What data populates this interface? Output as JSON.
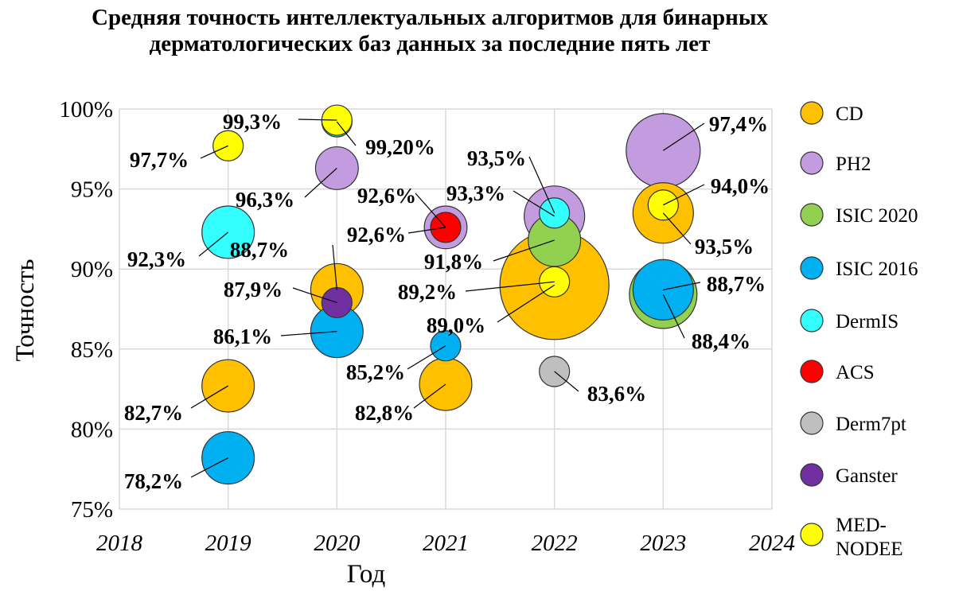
{
  "chart_data": {
    "type": "scatter",
    "subtype": "bubble",
    "title": "Средняя точность интеллектуальных алгоритмов для бинарных дерматологических баз данных за последние пять лет",
    "xlabel": "Год",
    "ylabel": "Точность",
    "xlim": [
      2018,
      2024
    ],
    "ylim": [
      75,
      100
    ],
    "xticks": [
      "2018",
      "2019",
      "2020",
      "2021",
      "2022",
      "2023",
      "2024"
    ],
    "yticks": [
      "75%",
      "80%",
      "85%",
      "90%",
      "95%",
      "100%"
    ],
    "grid": true,
    "legend_position": "right",
    "series": [
      {
        "name": "CD",
        "color": "#FFC000",
        "points": [
          {
            "x": 2019,
            "y": 82.7,
            "size": 3,
            "label": "82,7%"
          },
          {
            "x": 2020,
            "y": 88.7,
            "size": 3,
            "label": "88,7%"
          },
          {
            "x": 2021,
            "y": 82.8,
            "size": 3,
            "label": "82,8%"
          },
          {
            "x": 2022,
            "y": 89.0,
            "size": 13,
            "label": "89,0%"
          },
          {
            "x": 2023,
            "y": 93.5,
            "size": 4,
            "label": "93,5%"
          }
        ]
      },
      {
        "name": "PH2",
        "color": "#C39BDF",
        "points": [
          {
            "x": 2020,
            "y": 96.3,
            "size": 2,
            "label": "96,3%"
          },
          {
            "x": 2021,
            "y": 92.6,
            "size": 2,
            "label": "92,6%"
          },
          {
            "x": 2022,
            "y": 93.3,
            "size": 4,
            "label": "93,3%"
          },
          {
            "x": 2023,
            "y": 97.4,
            "size": 6,
            "label": "97,4%"
          }
        ]
      },
      {
        "name": "ISIC 2020",
        "color": "#92D050",
        "points": [
          {
            "x": 2022,
            "y": 91.8,
            "size": 3,
            "label": "91,8%"
          },
          {
            "x": 2023,
            "y": 88.4,
            "size": 5,
            "label": "88,4%"
          }
        ]
      },
      {
        "name": "ISIC 2016",
        "color": "#00B0F0",
        "points": [
          {
            "x": 2019,
            "y": 78.2,
            "size": 3,
            "label": "78,2%"
          },
          {
            "x": 2020,
            "y": 86.1,
            "size": 3,
            "label": "86,1%"
          },
          {
            "x": 2021,
            "y": 85.2,
            "size": 1,
            "label": "85,2%"
          },
          {
            "x": 2023,
            "y": 88.7,
            "size": 4,
            "label": "88,7%"
          }
        ]
      },
      {
        "name": "DermIS",
        "color": "#33FFFF",
        "points": [
          {
            "x": 2019,
            "y": 92.3,
            "size": 3,
            "label": "92,3%"
          },
          {
            "x": 2020,
            "y": 99.2,
            "size": 1,
            "label": "99,20%"
          },
          {
            "x": 2022,
            "y": 93.5,
            "size": 1,
            "label": "93,5%"
          }
        ]
      },
      {
        "name": "ACS",
        "color": "#FF0000",
        "points": [
          {
            "x": 2021,
            "y": 92.6,
            "size": 1,
            "label": "92,6%"
          }
        ]
      },
      {
        "name": "Derm7pt",
        "color": "#BFBFBF",
        "points": [
          {
            "x": 2022,
            "y": 83.6,
            "size": 1,
            "label": "83,6%"
          }
        ]
      },
      {
        "name": "Ganster",
        "color": "#7030A0",
        "points": [
          {
            "x": 2020,
            "y": 87.9,
            "size": 1,
            "label": "87,9%"
          }
        ]
      },
      {
        "name": "MED-NODEE",
        "color": "#FFFF00",
        "points": [
          {
            "x": 2019,
            "y": 97.7,
            "size": 1,
            "label": "97,7%"
          },
          {
            "x": 2020,
            "y": 99.3,
            "size": 1,
            "label": "99,3%"
          },
          {
            "x": 2022,
            "y": 89.2,
            "size": 1,
            "label": "89,2%"
          },
          {
            "x": 2023,
            "y": 94.0,
            "size": 1,
            "label": "94,0%"
          }
        ]
      }
    ]
  }
}
